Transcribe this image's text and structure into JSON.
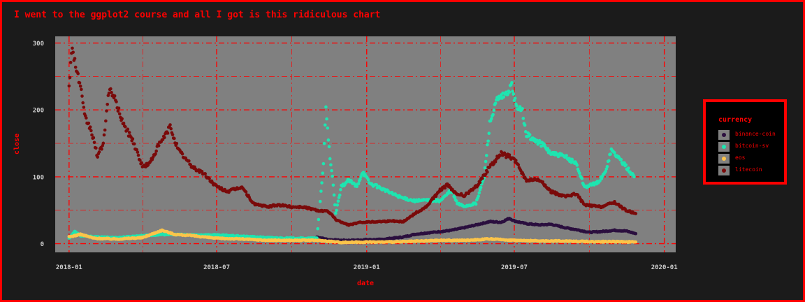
{
  "chart_data": {
    "type": "scatter",
    "title": "I went to the ggplot2 course and all I got is this ridiculous chart",
    "xlabel": "date",
    "ylabel": "close",
    "x_ticks": [
      "2018-01",
      "2018-07",
      "2019-01",
      "2019-07",
      "2020-01"
    ],
    "y_ticks": [
      0,
      100,
      200,
      300
    ],
    "xlim": [
      "2017-12-15",
      "2020-01-15"
    ],
    "ylim": [
      -13,
      310
    ],
    "grid": true,
    "legend_position": "right",
    "legend_title": "currency",
    "series": [
      {
        "name": "binance-coin",
        "color": "#2b0f3f",
        "points": [
          [
            "2018-11-01",
            10
          ],
          [
            "2018-11-15",
            6
          ],
          [
            "2018-12-01",
            5
          ],
          [
            "2018-12-15",
            5
          ],
          [
            "2019-01-01",
            6
          ],
          [
            "2019-01-15",
            6
          ],
          [
            "2019-02-01",
            8
          ],
          [
            "2019-02-15",
            10
          ],
          [
            "2019-03-01",
            14
          ],
          [
            "2019-03-15",
            16
          ],
          [
            "2019-04-01",
            18
          ],
          [
            "2019-04-15",
            20
          ],
          [
            "2019-05-01",
            24
          ],
          [
            "2019-05-15",
            28
          ],
          [
            "2019-06-01",
            33
          ],
          [
            "2019-06-15",
            32
          ],
          [
            "2019-06-25",
            38
          ],
          [
            "2019-07-01",
            34
          ],
          [
            "2019-07-15",
            30
          ],
          [
            "2019-08-01",
            28
          ],
          [
            "2019-08-15",
            29
          ],
          [
            "2019-09-01",
            24
          ],
          [
            "2019-09-15",
            21
          ],
          [
            "2019-10-01",
            17
          ],
          [
            "2019-10-15",
            18
          ],
          [
            "2019-11-01",
            20
          ],
          [
            "2019-11-15",
            19
          ],
          [
            "2019-11-27",
            15
          ]
        ]
      },
      {
        "name": "bitcoin-sv",
        "color": "#1ee5b0",
        "points": [
          [
            "2018-01-01",
            8
          ],
          [
            "2018-01-08",
            18
          ],
          [
            "2018-01-15",
            12
          ],
          [
            "2018-02-01",
            10
          ],
          [
            "2018-03-01",
            9
          ],
          [
            "2018-04-01",
            12
          ],
          [
            "2018-05-01",
            14
          ],
          [
            "2018-06-01",
            13
          ],
          [
            "2018-07-01",
            13
          ],
          [
            "2018-08-01",
            11
          ],
          [
            "2018-09-01",
            9
          ],
          [
            "2018-10-01",
            8
          ],
          [
            "2018-11-01",
            8
          ],
          [
            "2018-11-09",
            120
          ],
          [
            "2018-11-12",
            205
          ],
          [
            "2018-11-14",
            175
          ],
          [
            "2018-11-17",
            125
          ],
          [
            "2018-11-20",
            100
          ],
          [
            "2018-11-24",
            45
          ],
          [
            "2018-12-01",
            85
          ],
          [
            "2018-12-10",
            95
          ],
          [
            "2018-12-20",
            85
          ],
          [
            "2018-12-27",
            108
          ],
          [
            "2019-01-05",
            90
          ],
          [
            "2019-01-15",
            85
          ],
          [
            "2019-02-01",
            75
          ],
          [
            "2019-02-15",
            68
          ],
          [
            "2019-03-01",
            64
          ],
          [
            "2019-03-15",
            65
          ],
          [
            "2019-04-01",
            64
          ],
          [
            "2019-04-15",
            80
          ],
          [
            "2019-04-22",
            60
          ],
          [
            "2019-05-01",
            56
          ],
          [
            "2019-05-15",
            60
          ],
          [
            "2019-05-25",
            100
          ],
          [
            "2019-06-01",
            180
          ],
          [
            "2019-06-10",
            215
          ],
          [
            "2019-06-20",
            222
          ],
          [
            "2019-06-28",
            235
          ],
          [
            "2019-07-05",
            198
          ],
          [
            "2019-07-10",
            205
          ],
          [
            "2019-07-15",
            165
          ],
          [
            "2019-07-25",
            155
          ],
          [
            "2019-08-05",
            148
          ],
          [
            "2019-08-15",
            135
          ],
          [
            "2019-09-01",
            130
          ],
          [
            "2019-09-15",
            120
          ],
          [
            "2019-09-25",
            85
          ],
          [
            "2019-10-10",
            90
          ],
          [
            "2019-10-20",
            105
          ],
          [
            "2019-10-28",
            140
          ],
          [
            "2019-11-05",
            130
          ],
          [
            "2019-11-15",
            115
          ],
          [
            "2019-11-25",
            100
          ]
        ]
      },
      {
        "name": "eos",
        "color": "#fcc44a",
        "points": [
          [
            "2018-01-01",
            10
          ],
          [
            "2018-01-15",
            14
          ],
          [
            "2018-02-01",
            8
          ],
          [
            "2018-03-01",
            7
          ],
          [
            "2018-04-01",
            9
          ],
          [
            "2018-04-25",
            20
          ],
          [
            "2018-05-10",
            14
          ],
          [
            "2018-06-01",
            12
          ],
          [
            "2018-07-01",
            8
          ],
          [
            "2018-08-01",
            7
          ],
          [
            "2018-09-01",
            5
          ],
          [
            "2018-10-01",
            5
          ],
          [
            "2018-11-01",
            5
          ],
          [
            "2018-12-01",
            2
          ],
          [
            "2019-01-01",
            2.5
          ],
          [
            "2019-02-01",
            2.5
          ],
          [
            "2019-03-01",
            3.5
          ],
          [
            "2019-04-01",
            5
          ],
          [
            "2019-05-01",
            5
          ],
          [
            "2019-06-01",
            7
          ],
          [
            "2019-07-01",
            5
          ],
          [
            "2019-08-01",
            4
          ],
          [
            "2019-09-01",
            4
          ],
          [
            "2019-10-01",
            3
          ],
          [
            "2019-11-01",
            3
          ],
          [
            "2019-11-27",
            2.5
          ]
        ]
      },
      {
        "name": "litecoin",
        "color": "#7a0a0a",
        "points": [
          [
            "2018-01-01",
            240
          ],
          [
            "2018-01-05",
            295
          ],
          [
            "2018-01-10",
            260
          ],
          [
            "2018-01-15",
            235
          ],
          [
            "2018-01-20",
            190
          ],
          [
            "2018-01-28",
            170
          ],
          [
            "2018-02-05",
            130
          ],
          [
            "2018-02-12",
            150
          ],
          [
            "2018-02-18",
            220
          ],
          [
            "2018-02-22",
            230
          ],
          [
            "2018-03-01",
            205
          ],
          [
            "2018-03-10",
            175
          ],
          [
            "2018-03-20",
            155
          ],
          [
            "2018-04-01",
            115
          ],
          [
            "2018-04-10",
            120
          ],
          [
            "2018-04-20",
            145
          ],
          [
            "2018-04-28",
            160
          ],
          [
            "2018-05-05",
            175
          ],
          [
            "2018-05-15",
            140
          ],
          [
            "2018-06-01",
            115
          ],
          [
            "2018-06-15",
            105
          ],
          [
            "2018-07-01",
            85
          ],
          [
            "2018-07-15",
            78
          ],
          [
            "2018-08-01",
            85
          ],
          [
            "2018-08-15",
            60
          ],
          [
            "2018-09-01",
            55
          ],
          [
            "2018-09-15",
            58
          ],
          [
            "2018-10-01",
            55
          ],
          [
            "2018-10-15",
            55
          ],
          [
            "2018-11-01",
            50
          ],
          [
            "2018-11-15",
            48
          ],
          [
            "2018-11-25",
            35
          ],
          [
            "2018-12-10",
            28
          ],
          [
            "2018-12-25",
            32
          ],
          [
            "2019-01-15",
            33
          ],
          [
            "2019-02-01",
            34
          ],
          [
            "2019-02-15",
            33
          ],
          [
            "2019-03-01",
            45
          ],
          [
            "2019-03-15",
            55
          ],
          [
            "2019-04-01",
            80
          ],
          [
            "2019-04-10",
            88
          ],
          [
            "2019-04-20",
            75
          ],
          [
            "2019-05-01",
            72
          ],
          [
            "2019-05-15",
            85
          ],
          [
            "2019-06-01",
            115
          ],
          [
            "2019-06-15",
            135
          ],
          [
            "2019-06-25",
            130
          ],
          [
            "2019-07-05",
            120
          ],
          [
            "2019-07-15",
            95
          ],
          [
            "2019-08-01",
            95
          ],
          [
            "2019-08-15",
            78
          ],
          [
            "2019-09-01",
            70
          ],
          [
            "2019-09-15",
            75
          ],
          [
            "2019-09-25",
            58
          ],
          [
            "2019-10-15",
            55
          ],
          [
            "2019-11-01",
            62
          ],
          [
            "2019-11-15",
            50
          ],
          [
            "2019-11-27",
            45
          ]
        ]
      }
    ]
  }
}
